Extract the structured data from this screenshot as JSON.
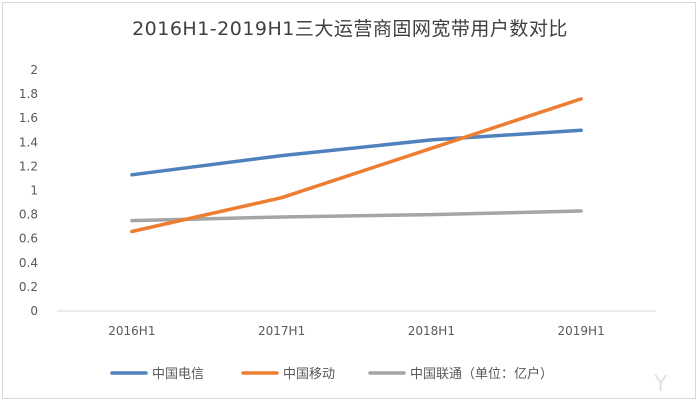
{
  "chart_data": {
    "type": "line",
    "title": "2016H1-2019H1三大运营商固网宽带用户数对比",
    "categories": [
      "2016H1",
      "2017H1",
      "2018H1",
      "2019H1"
    ],
    "ylim": [
      0,
      2
    ],
    "yticks": [
      "0",
      "0.2",
      "0.4",
      "0.6",
      "0.8",
      "1",
      "1.2",
      "1.4",
      "1.6",
      "1.8",
      "2"
    ],
    "grid": false,
    "legend_position": "bottom",
    "series": [
      {
        "name": "中国电信",
        "color": "#4f81bd",
        "values": [
          1.13,
          1.29,
          1.42,
          1.5
        ]
      },
      {
        "name": "中国移动",
        "color": "#ed7d31",
        "values": [
          0.66,
          0.94,
          1.35,
          1.76
        ]
      },
      {
        "name": "中国联通（单位：亿户）",
        "color": "#a5a5a5",
        "values": [
          0.75,
          0.78,
          0.8,
          0.83
        ]
      }
    ]
  }
}
